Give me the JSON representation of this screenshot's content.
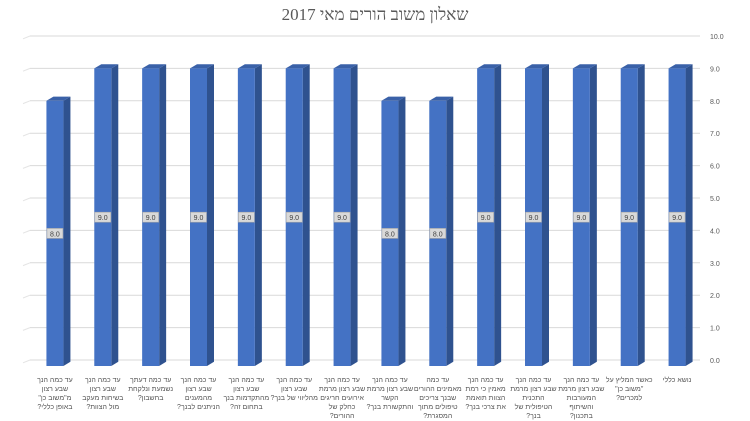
{
  "chart_data": {
    "type": "bar",
    "title": "שאלון משוב הורים מאי 2017",
    "xlabel": "",
    "ylabel": "",
    "ylim": [
      0,
      10
    ],
    "yticks": [
      "0.0",
      "1.0",
      "2.0",
      "3.0",
      "4.0",
      "5.0",
      "6.0",
      "7.0",
      "8.0",
      "9.0",
      "10.0"
    ],
    "y_axis_side": "right",
    "grid": true,
    "three_d": true,
    "bar_color": "#4472C4",
    "categories": [
      "עד כמה הנך שבע רצון מ\"משוב כן\" באופן כללי?",
      "עד כמה הנך שבע רצון בשיחות מעקב מול הצוות?",
      "עד כמה דעתך נשמעת ונלקחת בחשבון?",
      "עד כמה הנך שבע רצון מהמענים הניתנים לבנך?",
      "עד כמה הנך שבע רצון מהתקדמות בנך בתחום זה?",
      "עד כמה הנך שבע רצון מהליווי של בנך?",
      "עד כמה הנך שבע רצון מרמת אירועים חריגים כחלק של ההורים?",
      "עד כמה הנך שבע רצון מרמת הקשר והתקשורת בנך?",
      "עד כמה מאמינים ההורים שבנך צריכים טיפולים מתוך המסגרת?",
      "עד כמה הנך מאמין כי רמת הצוות תואמת את צרכי בנך?",
      "עד כמה הנך שבע רצון מרמת התכנית הטיפולית של בנך?",
      "עד כמה הנך שבע רצון מרמת המעורבות והשיתוף בתכנון?",
      "כאשר המליץ על \"משוב כן\" למכרים?",
      "נושא כללי"
    ],
    "values": [
      8.0,
      9.0,
      9.0,
      9.0,
      9.0,
      9.0,
      9.0,
      8.0,
      8.0,
      9.0,
      9.0,
      9.0,
      9.0,
      9.0
    ],
    "data_labels": [
      "8.0",
      "9.0",
      "9.0",
      "9.0",
      "9.0",
      "9.0",
      "9.0",
      "8.0",
      "8.0",
      "9.0",
      "9.0",
      "9.0",
      "9.0",
      "9.0"
    ]
  }
}
